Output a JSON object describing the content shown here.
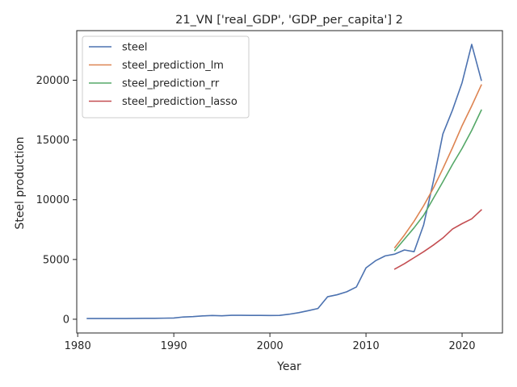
{
  "chart_data": {
    "type": "line",
    "title": "21_VN ['real_GDP', 'GDP_per_capita'] 2",
    "xlabel": "Year",
    "ylabel": "Steel production",
    "xlim": [
      1979.9,
      2024.2
    ],
    "ylim": [
      -1150,
      24150
    ],
    "xticks": [
      1980,
      1990,
      2000,
      2010,
      2020
    ],
    "yticks": [
      0,
      5000,
      10000,
      15000,
      20000
    ],
    "grid": false,
    "legend_position": "upper left",
    "series": [
      {
        "name": "steel",
        "color": "#4c72b0",
        "x": [
          1981,
          1982,
          1983,
          1984,
          1985,
          1986,
          1987,
          1988,
          1989,
          1990,
          1991,
          1992,
          1993,
          1994,
          1995,
          1996,
          1997,
          1998,
          1999,
          2000,
          2001,
          2002,
          2003,
          2004,
          2005,
          2006,
          2007,
          2008,
          2009,
          2010,
          2011,
          2012,
          2013,
          2014,
          2015,
          2016,
          2017,
          2018,
          2019,
          2020,
          2021,
          2022
        ],
        "y": [
          60,
          60,
          60,
          60,
          60,
          70,
          75,
          80,
          90,
          100,
          190,
          220,
          280,
          310,
          290,
          330,
          330,
          320,
          320,
          310,
          320,
          420,
          550,
          720,
          900,
          1880,
          2050,
          2300,
          2700,
          4300,
          4900,
          5300,
          5450,
          5800,
          5650,
          7900,
          11500,
          15500,
          17500,
          19800,
          23000,
          20000
        ]
      },
      {
        "name": "steel_prediction_lm",
        "color": "#dd8452",
        "x": [
          2013,
          2014,
          2015,
          2016,
          2017,
          2018,
          2019,
          2020,
          2021,
          2022
        ],
        "y": [
          6000,
          7050,
          8200,
          9500,
          10950,
          12600,
          14350,
          16200,
          17850,
          19600
        ]
      },
      {
        "name": "steel_prediction_rr",
        "color": "#55a868",
        "x": [
          2013,
          2014,
          2015,
          2016,
          2017,
          2018,
          2019,
          2020,
          2021,
          2022
        ],
        "y": [
          5750,
          6700,
          7650,
          8700,
          10100,
          11500,
          12950,
          14300,
          15800,
          17500
        ]
      },
      {
        "name": "steel_prediction_lasso",
        "color": "#c44e52",
        "x": [
          2013,
          2014,
          2015,
          2016,
          2017,
          2018,
          2019,
          2020,
          2021,
          2022
        ],
        "y": [
          4200,
          4650,
          5150,
          5650,
          6200,
          6800,
          7550,
          8000,
          8400,
          9150
        ]
      }
    ]
  }
}
